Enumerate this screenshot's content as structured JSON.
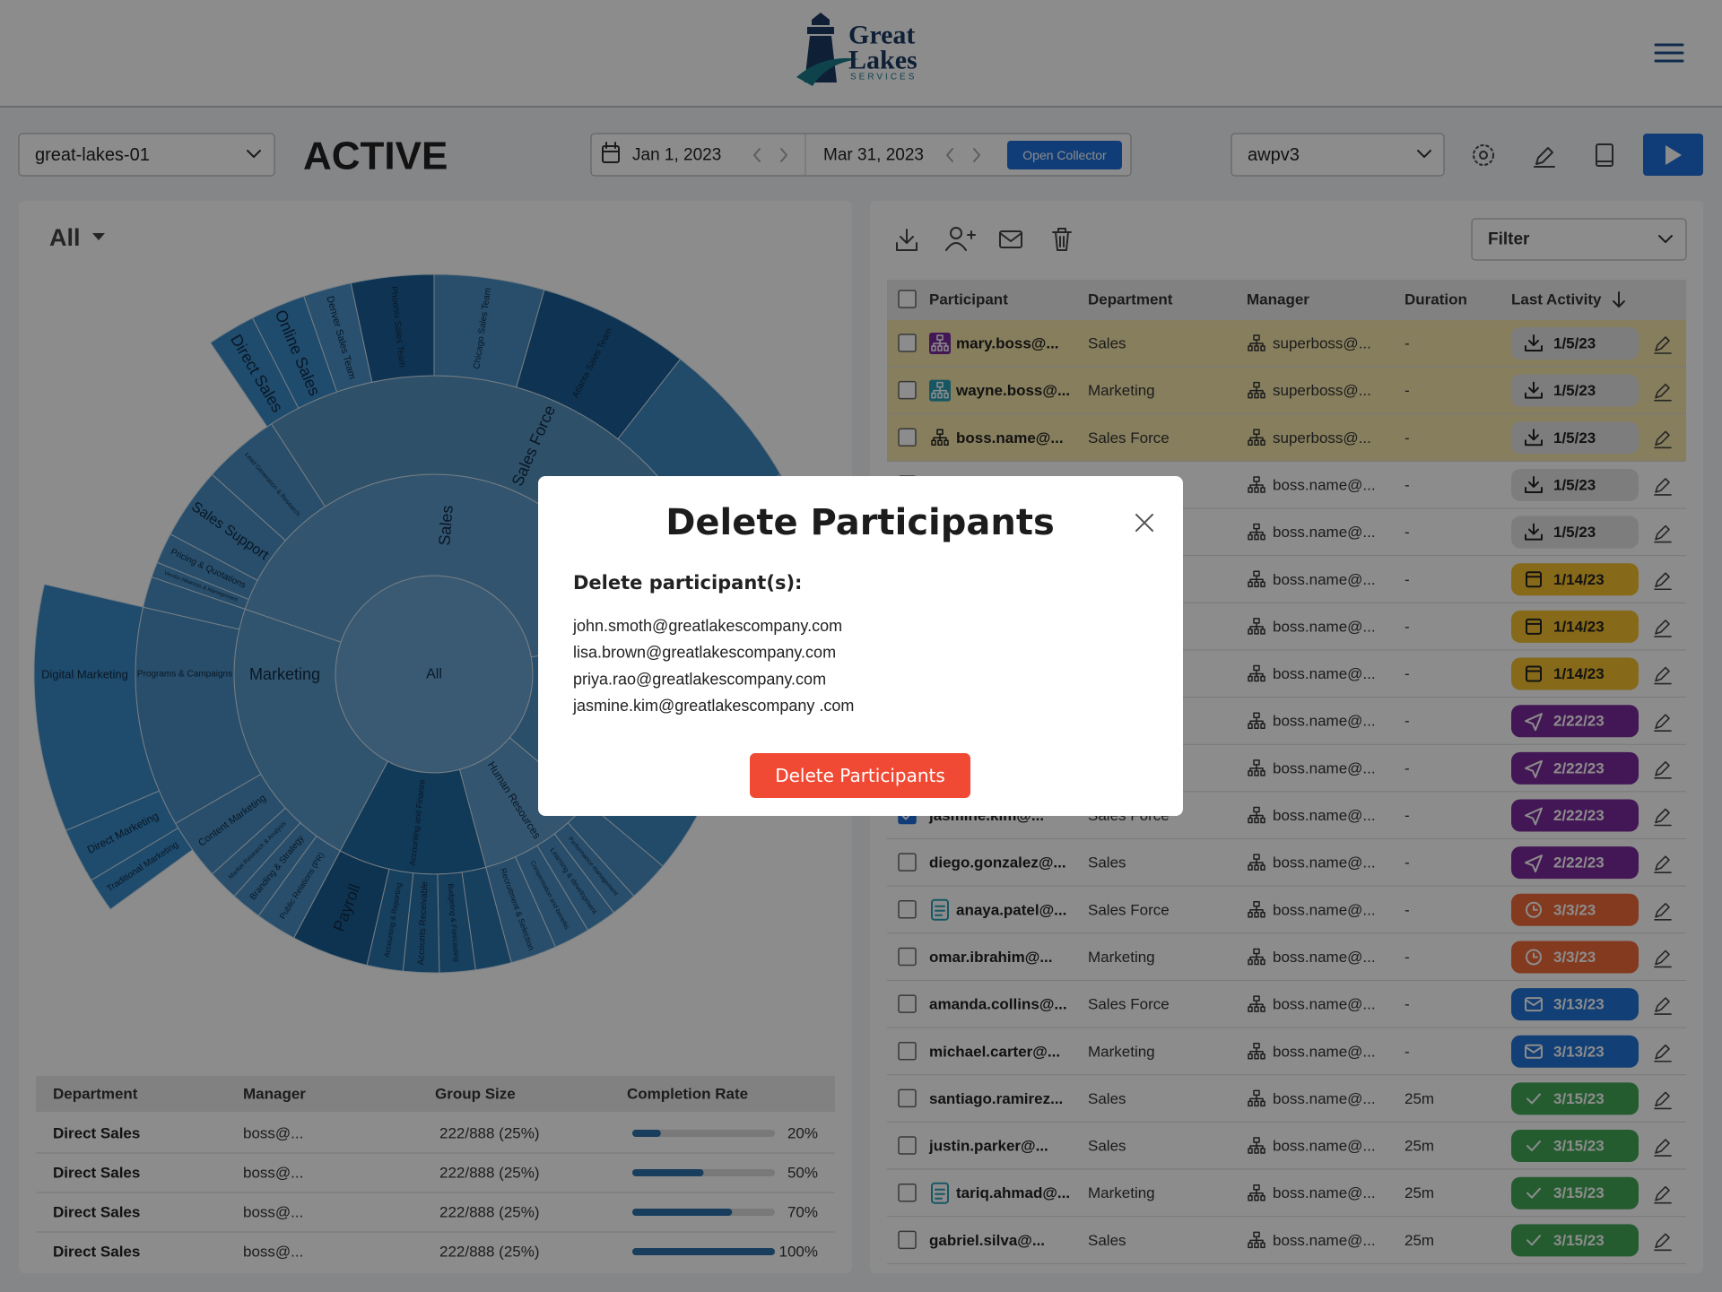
{
  "header": {
    "logo": {
      "line1": "Great",
      "line2": "Lakes",
      "line3": "SERVICES"
    }
  },
  "toolbar": {
    "project": "great-lakes-01",
    "status": "ACTIVE",
    "start_date": "Jan 1, 2023",
    "end_date": "Mar 31, 2023",
    "collector_button": "Open Collector",
    "survey": "awpv3"
  },
  "left_panel": {
    "scope": "All",
    "sunburst": {
      "nodes": [
        {
          "label": "All"
        },
        {
          "label": "Sales"
        },
        {
          "label": "Marketing"
        },
        {
          "label": "Accounting and Finance"
        },
        {
          "label": "Human Resources"
        },
        {
          "label": "Sales Force"
        },
        {
          "label": "Lead Generation & Research"
        },
        {
          "label": "Sales Support"
        },
        {
          "label": "Pricing & Quotations"
        },
        {
          "label": "Vendor Alliances & Management"
        },
        {
          "label": "Programs & Campaigns"
        },
        {
          "label": "Content Marketing"
        },
        {
          "label": "Market Research & Analysis"
        },
        {
          "label": "Branding & Strategy"
        },
        {
          "label": "Public Relations (PR)"
        },
        {
          "label": "Payroll"
        },
        {
          "label": "Accounting & Reporting"
        },
        {
          "label": "Accounts Receivable"
        },
        {
          "label": "Budgeting & Forecasting"
        },
        {
          "label": "Recruitment & Selection"
        },
        {
          "label": "Compensation and benefits"
        },
        {
          "label": "Learning & development"
        },
        {
          "label": "Performance management"
        },
        {
          "label": "Direct Sales"
        },
        {
          "label": "Online Sales"
        },
        {
          "label": "Denver Sales Team"
        },
        {
          "label": "Phoenix Sales Team"
        },
        {
          "label": "Chicago Sales Team"
        },
        {
          "label": "Atlanta Sales Team"
        },
        {
          "label": "Digital Marketing"
        },
        {
          "label": "Direct Marketing"
        },
        {
          "label": "Traditional Marketing"
        }
      ]
    },
    "table": {
      "columns": [
        "Department",
        "Manager",
        "Group Size",
        "Completion Rate"
      ],
      "completion_lim": [
        0,
        100
      ],
      "rows": [
        {
          "department": "Direct Sales",
          "manager": "boss@...",
          "group_size": "222/888 (25%)",
          "completion_rate": {
            "value": 20,
            "label": "20%"
          }
        },
        {
          "department": "Direct Sales",
          "manager": "boss@...",
          "group_size": "222/888 (25%)",
          "completion_rate": {
            "value": 50,
            "label": "50%"
          }
        },
        {
          "department": "Direct Sales",
          "manager": "boss@...",
          "group_size": "222/888 (25%)",
          "completion_rate": {
            "value": 70,
            "label": "70%"
          }
        },
        {
          "department": "Direct Sales",
          "manager": "boss@...",
          "group_size": "222/888 (25%)",
          "completion_rate": {
            "value": 100,
            "label": "100%"
          }
        }
      ]
    }
  },
  "right_panel": {
    "filter": "Filter",
    "table": {
      "columns": [
        "Participant",
        "Department",
        "Manager",
        "Duration",
        "Last Activity"
      ],
      "rows": [
        {
          "participant": "mary.boss@...",
          "department": "Sales",
          "manager": "superboss@...",
          "duration": "-",
          "last_activity": "1/5/23"
        },
        {
          "participant": "wayne.boss@...",
          "department": "Marketing",
          "manager": "superboss@...",
          "duration": "-",
          "last_activity": "1/5/23"
        },
        {
          "participant": "boss.name@...",
          "department": "Sales Force",
          "manager": "superboss@...",
          "duration": "-",
          "last_activity": "1/5/23"
        },
        {
          "participant": null,
          "department": null,
          "manager": "boss.name@...",
          "duration": "-",
          "last_activity": "1/5/23"
        },
        {
          "participant": null,
          "department": null,
          "manager": "boss.name@...",
          "duration": "-",
          "last_activity": "1/5/23"
        },
        {
          "participant": null,
          "department": null,
          "manager": "boss.name@...",
          "duration": "-",
          "last_activity": "1/14/23"
        },
        {
          "participant": null,
          "department": null,
          "manager": "boss.name@...",
          "duration": "-",
          "last_activity": "1/14/23"
        },
        {
          "participant": null,
          "department": null,
          "manager": "boss.name@...",
          "duration": "-",
          "last_activity": "1/14/23"
        },
        {
          "participant": null,
          "department": null,
          "manager": "boss.name@...",
          "duration": "-",
          "last_activity": "2/22/23"
        },
        {
          "participant": null,
          "department": null,
          "manager": "boss.name@...",
          "duration": "-",
          "last_activity": "2/22/23"
        },
        {
          "participant": "jasmine.kim@...",
          "department": "Sales Force",
          "manager": "boss.name@...",
          "duration": "-",
          "last_activity": "2/22/23",
          "selected": true
        },
        {
          "participant": "diego.gonzalez@...",
          "department": "Sales",
          "manager": "boss.name@...",
          "duration": "-",
          "last_activity": "2/22/23"
        },
        {
          "participant": "anaya.patel@...",
          "department": "Sales Force",
          "manager": "boss.name@...",
          "duration": "-",
          "last_activity": "3/3/23"
        },
        {
          "participant": "omar.ibrahim@...",
          "department": "Marketing",
          "manager": "boss.name@...",
          "duration": "-",
          "last_activity": "3/3/23"
        },
        {
          "participant": "amanda.collins@...",
          "department": "Sales Force",
          "manager": "boss.name@...",
          "duration": "-",
          "last_activity": "3/13/23"
        },
        {
          "participant": "michael.carter@...",
          "department": "Marketing",
          "manager": "boss.name@...",
          "duration": "-",
          "last_activity": "3/13/23"
        },
        {
          "participant": "santiago.ramirez...",
          "department": "Sales",
          "manager": "boss.name@...",
          "duration": "25m",
          "last_activity": "3/15/23"
        },
        {
          "participant": "justin.parker@...",
          "department": "Sales",
          "manager": "boss.name@...",
          "duration": "25m",
          "last_activity": "3/15/23"
        },
        {
          "participant": "tariq.ahmad@...",
          "department": "Marketing",
          "manager": "boss.name@...",
          "duration": "25m",
          "last_activity": "3/15/23"
        },
        {
          "participant": "gabriel.silva@...",
          "department": "Sales",
          "manager": "boss.name@...",
          "duration": "25m",
          "last_activity": "3/15/23"
        }
      ]
    }
  },
  "modal": {
    "title": "Delete Participants",
    "subtitle": "Delete participant(s):",
    "emails": [
      "john.smoth@greatlakescompany.com",
      "lisa.brown@greatlakescompany.com",
      "priya.rao@greatlakescompany.com",
      "jasmine.kim@greatlakescompany .com"
    ],
    "button": "Delete Participants"
  }
}
